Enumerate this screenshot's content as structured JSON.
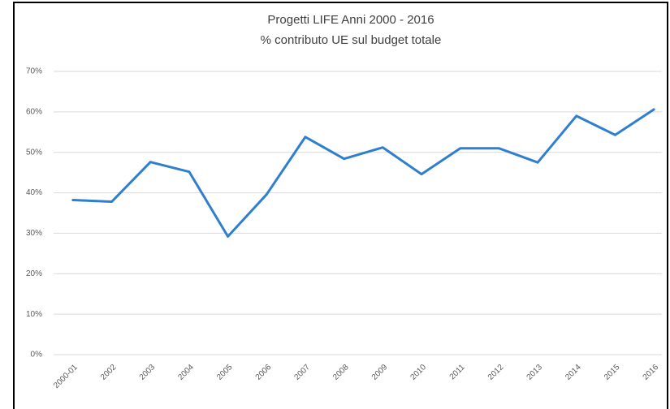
{
  "chart_data": {
    "type": "line",
    "title": "Progetti LIFE Anni 2000 - 2016",
    "subtitle": "% contributo UE sul budget totale",
    "categories": [
      "2000-01",
      "2002",
      "2003",
      "2004",
      "2005",
      "2006",
      "2007",
      "2008",
      "2009",
      "2010",
      "2011",
      "2012",
      "2013",
      "2014",
      "2015",
      "2016"
    ],
    "series": [
      {
        "name": "% contributo UE",
        "color": "#2f7fcf",
        "values": [
          38.2,
          37.8,
          47.6,
          45.2,
          29.2,
          39.6,
          53.8,
          48.4,
          51.2,
          44.6,
          51.0,
          51.0,
          47.5,
          59.0,
          54.3,
          60.6
        ]
      }
    ],
    "ylim": [
      0,
      70
    ],
    "yticks": [
      {
        "value": 0,
        "label": "0%"
      },
      {
        "value": 10,
        "label": "10%"
      },
      {
        "value": 20,
        "label": "20%"
      },
      {
        "value": 30,
        "label": "30%"
      },
      {
        "value": 40,
        "label": "40%"
      },
      {
        "value": 50,
        "label": "50%"
      },
      {
        "value": 60,
        "label": "60%"
      },
      {
        "value": 70,
        "label": "70%"
      }
    ],
    "grid": true
  }
}
